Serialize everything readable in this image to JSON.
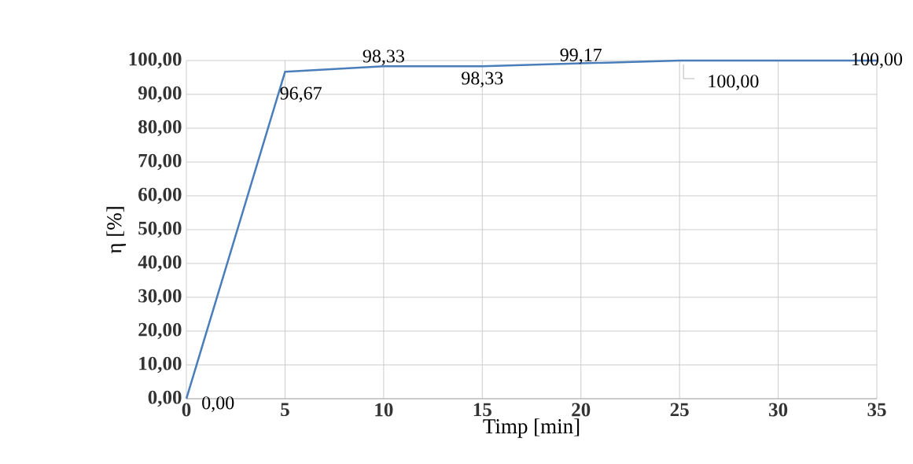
{
  "chart_data": {
    "type": "line",
    "xlabel": "Timp [min]",
    "ylabel": "η [%]",
    "x": [
      0,
      5,
      10,
      15,
      20,
      25,
      35
    ],
    "values": [
      0,
      96.67,
      98.33,
      98.33,
      99.17,
      100,
      100
    ],
    "value_labels": [
      "0,00",
      "96,67",
      "98,33",
      "98,33",
      "99,17",
      "100,00",
      "100,00"
    ],
    "color": "#4a7ebb",
    "marker": "none",
    "grid": true,
    "xlim": [
      0,
      35
    ],
    "xticks": [
      0,
      5,
      10,
      15,
      20,
      25,
      30,
      35
    ],
    "ylim": [
      0,
      100
    ],
    "yticks": [
      {
        "value": 0,
        "label": "0,00"
      },
      {
        "value": 10,
        "label": "10,00"
      },
      {
        "value": 20,
        "label": "20,00"
      },
      {
        "value": 30,
        "label": "30,00"
      },
      {
        "value": 40,
        "label": "40,00"
      },
      {
        "value": 50,
        "label": "50,00"
      },
      {
        "value": 60,
        "label": "60,00"
      },
      {
        "value": 70,
        "label": "70,00"
      },
      {
        "value": 80,
        "label": "80,00"
      },
      {
        "value": 90,
        "label": "90,00"
      },
      {
        "value": 100,
        "label": "100,00"
      }
    ]
  }
}
